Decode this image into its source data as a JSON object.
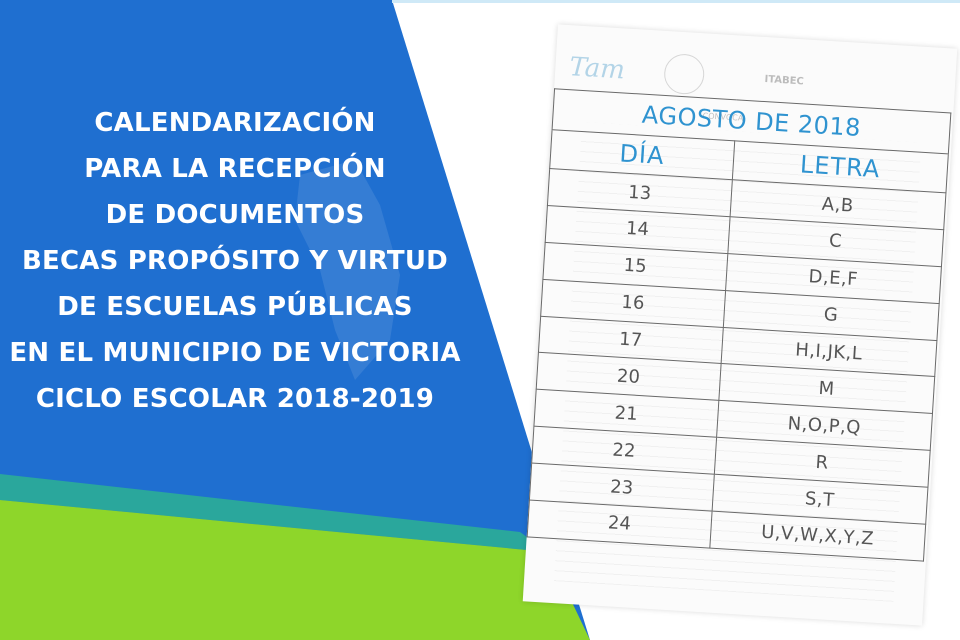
{
  "headline": {
    "lines": [
      "CALENDARIZACIÓN",
      "PARA LA RECEPCIÓN",
      "DE DOCUMENTOS",
      "BECAS PROPÓSITO Y VIRTUD",
      "DE ESCUELAS PÚBLICAS",
      "EN EL MUNICIPIO DE VICTORIA",
      "CICLO ESCOLAR 2018-2019"
    ]
  },
  "sheet": {
    "logo_text": "Tam",
    "agency": "ITABEC",
    "convoca": "CONVOCA",
    "table": {
      "title": "AGOSTO DE 2018",
      "col_day": "DÍA",
      "col_letter": "LETRA",
      "rows": [
        {
          "day": "13",
          "letters": "A,B"
        },
        {
          "day": "14",
          "letters": "C"
        },
        {
          "day": "15",
          "letters": "D,E,F"
        },
        {
          "day": "16",
          "letters": "G"
        },
        {
          "day": "17",
          "letters": "H,I,JK,L"
        },
        {
          "day": "20",
          "letters": "M"
        },
        {
          "day": "21",
          "letters": "N,O,P,Q"
        },
        {
          "day": "22",
          "letters": "R"
        },
        {
          "day": "23",
          "letters": "S,T"
        },
        {
          "day": "24",
          "letters": "U,V,W,X,Y,Z"
        }
      ]
    }
  },
  "colors": {
    "blue_panel": "#1f6fd0",
    "green_band": "#8ed62a",
    "teal_band": "#2aa79c",
    "table_accent": "#2f93d0"
  }
}
